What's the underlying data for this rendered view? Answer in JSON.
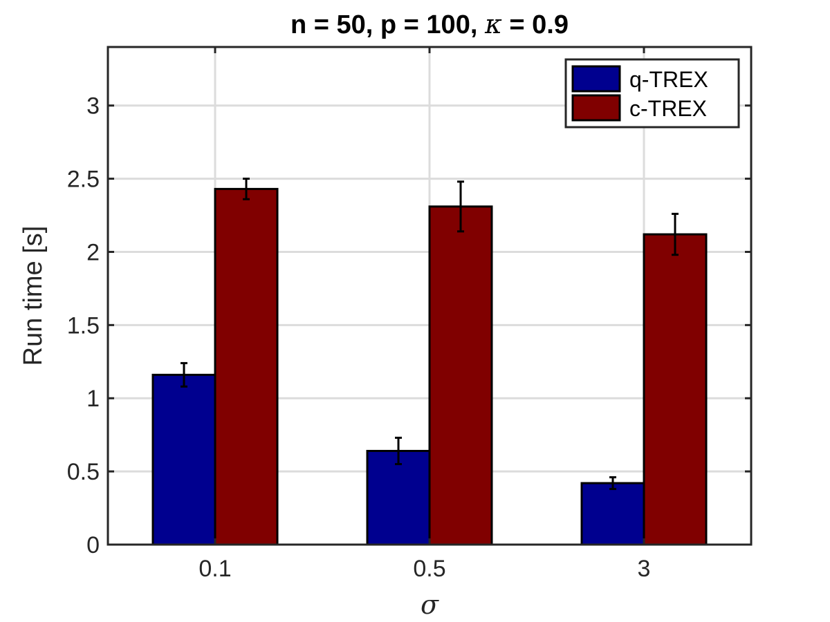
{
  "chart_data": {
    "type": "bar",
    "title_main": "n = 50, p = 100, ",
    "title_symbol": "κ",
    "title_tail": " = 0.9",
    "xlabel": "σ",
    "ylabel": "Run time [s]",
    "categories": [
      "0.1",
      "0.5",
      "3"
    ],
    "series": [
      {
        "name": "q-TREX",
        "color": "#00008F",
        "values": [
          1.16,
          0.64,
          0.42
        ],
        "errors": [
          0.08,
          0.09,
          0.04
        ]
      },
      {
        "name": "c-TREX",
        "color": "#800000",
        "values": [
          2.43,
          2.31,
          2.12
        ],
        "errors": [
          0.07,
          0.17,
          0.14
        ]
      }
    ],
    "ylim": [
      0,
      3.4
    ],
    "yticks": [
      "0",
      "0.5",
      "1",
      "1.5",
      "2",
      "2.5",
      "3"
    ],
    "grid": true,
    "legend_position": "top-right"
  }
}
